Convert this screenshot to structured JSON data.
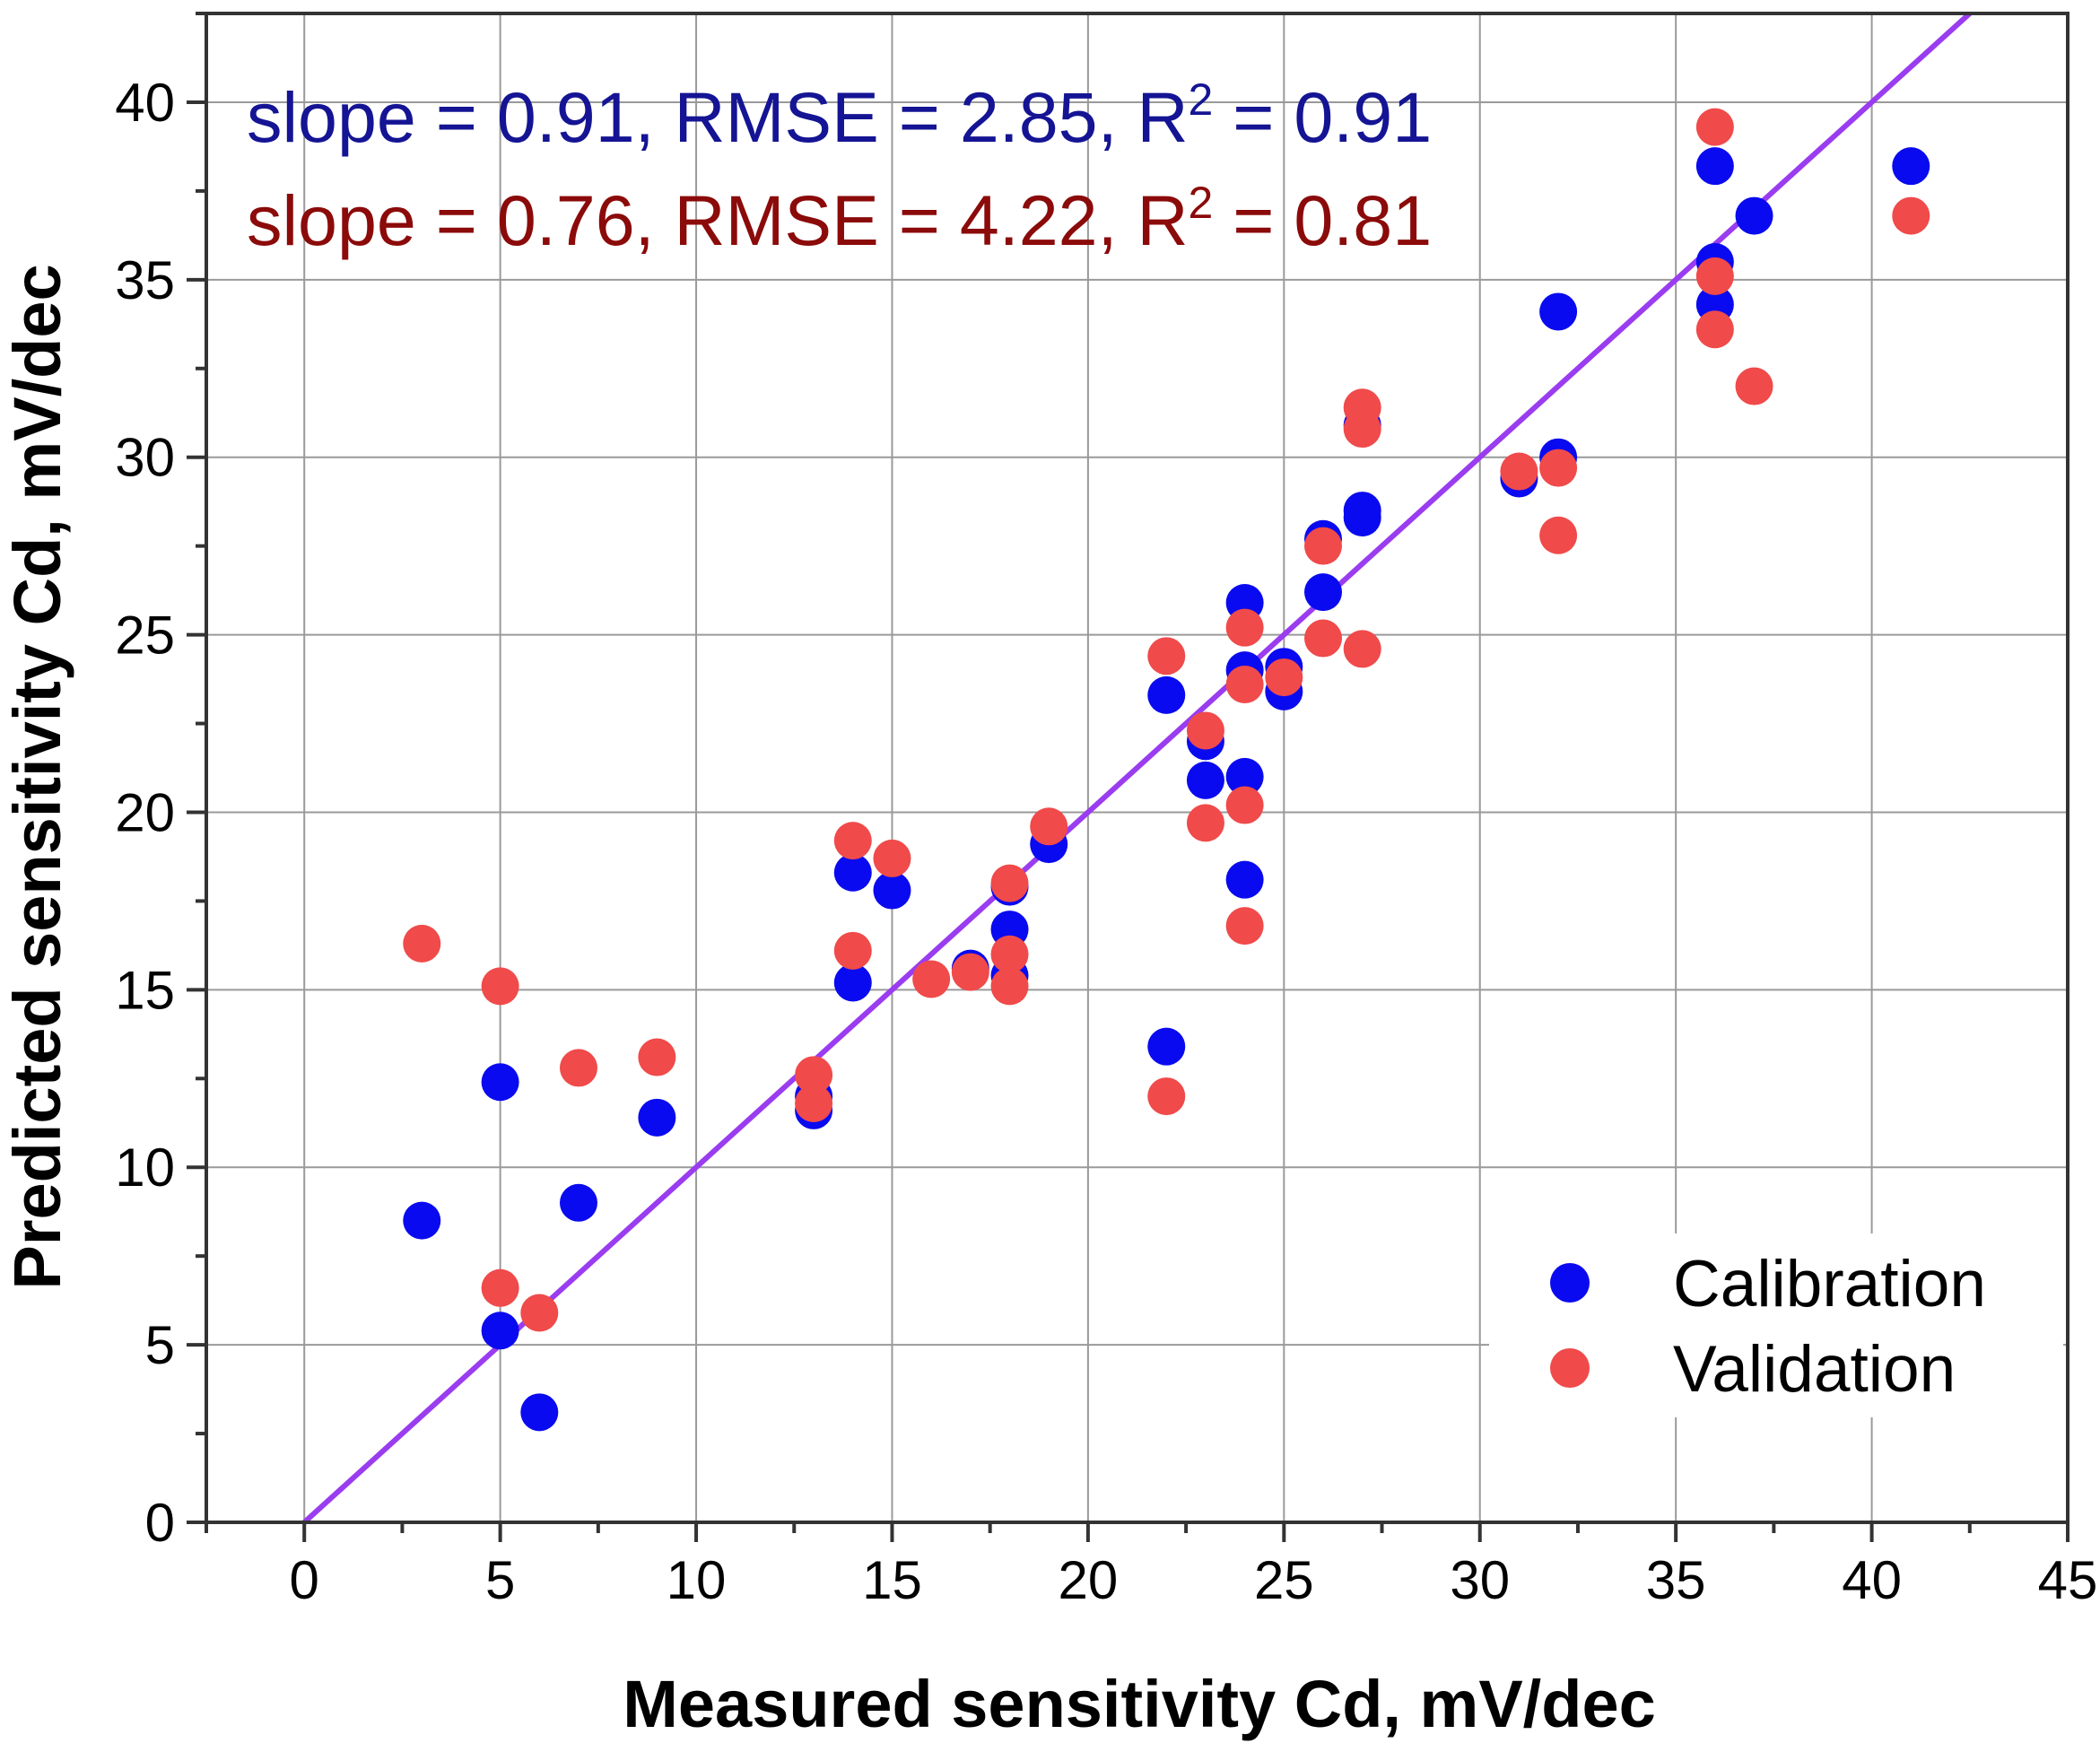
{
  "chart_data": {
    "type": "scatter",
    "xlabel": "Measured sensitivity Cd, mV/dec",
    "ylabel": "Predicted sensitivity Cd, mV/dec",
    "xlim": [
      -2.5,
      45
    ],
    "ylim": [
      0,
      42.5
    ],
    "xticks": [
      0,
      5,
      10,
      15,
      20,
      25,
      30,
      35,
      40,
      45
    ],
    "yticks": [
      0,
      5,
      10,
      15,
      20,
      25,
      30,
      35,
      40
    ],
    "grid": true,
    "legend_position": "bottom-right",
    "reference_line": {
      "from": [
        0,
        0
      ],
      "to": [
        42.5,
        42.5
      ],
      "color": "#9a3cf0"
    },
    "annotations": [
      {
        "prefix": "slope = 0.91, RMSE = 2.85, R",
        "sup": "2",
        "suffix": " = 0.91",
        "color": "#141494"
      },
      {
        "prefix": "slope = 0.76, RMSE = 4.22, R",
        "sup": "2",
        "suffix": " = 0.81",
        "color": "#8b0a0a"
      }
    ],
    "series": [
      {
        "name": "Calibration",
        "color": "#0a0af0",
        "points": [
          [
            3,
            8.5
          ],
          [
            5,
            12.4
          ],
          [
            5,
            5.4
          ],
          [
            6,
            3.1
          ],
          [
            7,
            9.0
          ],
          [
            9,
            11.4
          ],
          [
            13,
            12.0
          ],
          [
            13,
            11.6
          ],
          [
            14,
            18.3
          ],
          [
            14,
            15.2
          ],
          [
            15,
            17.8
          ],
          [
            17,
            15.6
          ],
          [
            18,
            17.9
          ],
          [
            18,
            16.7
          ],
          [
            18,
            15.4
          ],
          [
            19,
            19.1
          ],
          [
            22,
            23.3
          ],
          [
            22,
            13.4
          ],
          [
            23,
            22.0
          ],
          [
            23,
            20.9
          ],
          [
            24,
            25.9
          ],
          [
            24,
            24.0
          ],
          [
            24,
            21.0
          ],
          [
            24,
            18.1
          ],
          [
            25,
            24.1
          ],
          [
            25,
            23.4
          ],
          [
            26,
            27.7
          ],
          [
            26,
            26.2
          ],
          [
            27,
            28.5
          ],
          [
            27,
            28.3
          ],
          [
            27,
            30.9
          ],
          [
            31,
            29.4
          ],
          [
            32,
            34.1
          ],
          [
            32,
            30.0
          ],
          [
            36,
            38.2
          ],
          [
            36,
            35.5
          ],
          [
            36,
            34.3
          ],
          [
            37,
            36.8
          ],
          [
            41,
            38.2
          ]
        ]
      },
      {
        "name": "Validation",
        "color": "#f04a4a",
        "points": [
          [
            3,
            16.3
          ],
          [
            5,
            15.1
          ],
          [
            5,
            6.6
          ],
          [
            6,
            5.9
          ],
          [
            7,
            12.8
          ],
          [
            9,
            13.1
          ],
          [
            13,
            12.6
          ],
          [
            13,
            11.8
          ],
          [
            14,
            19.2
          ],
          [
            14,
            16.1
          ],
          [
            15,
            18.7
          ],
          [
            16,
            15.3
          ],
          [
            17,
            15.5
          ],
          [
            18,
            18.0
          ],
          [
            18,
            16.0
          ],
          [
            18,
            15.1
          ],
          [
            19,
            19.6
          ],
          [
            22,
            24.4
          ],
          [
            22,
            12.0
          ],
          [
            23,
            22.3
          ],
          [
            23,
            19.7
          ],
          [
            24,
            25.2
          ],
          [
            24,
            23.6
          ],
          [
            24,
            20.2
          ],
          [
            24,
            16.8
          ],
          [
            25,
            23.8
          ],
          [
            26,
            27.5
          ],
          [
            26,
            24.9
          ],
          [
            27,
            31.4
          ],
          [
            27,
            30.8
          ],
          [
            27,
            24.6
          ],
          [
            31,
            29.6
          ],
          [
            32,
            29.7
          ],
          [
            32,
            27.8
          ],
          [
            36,
            39.3
          ],
          [
            36,
            35.1
          ],
          [
            36,
            33.6
          ],
          [
            37,
            32.0
          ],
          [
            41,
            36.8
          ]
        ]
      }
    ]
  }
}
